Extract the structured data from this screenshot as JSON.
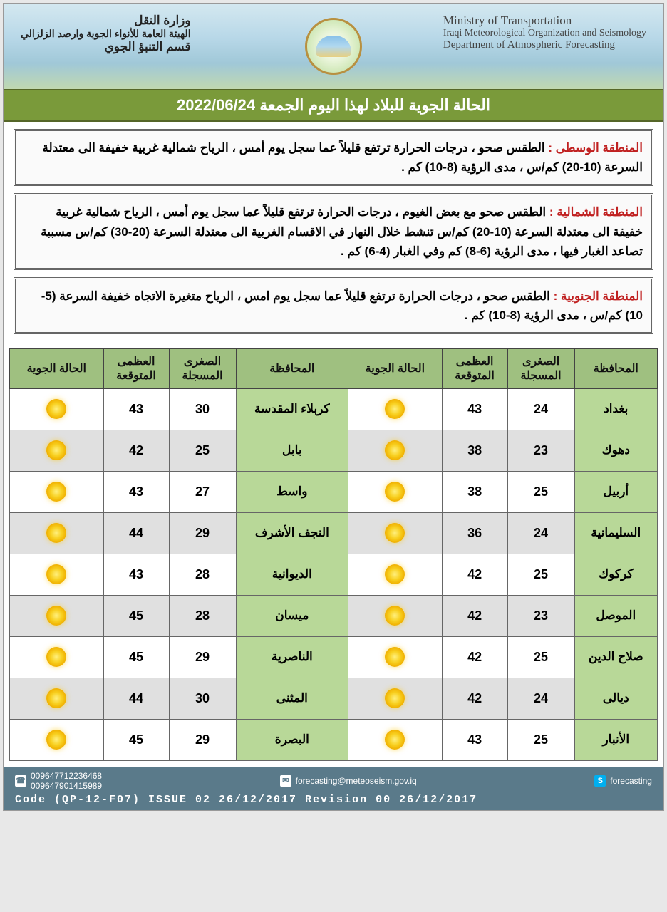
{
  "header": {
    "left_en": {
      "line1": "Ministry of Transportation",
      "line2": "Iraqi Meteorological Organization and Seismology",
      "line3": "Department of Atmospheric Forecasting"
    },
    "right_ar": {
      "line1": "وزارة النقل",
      "line2": "الهيئة العامة للأنواء الجوية وارصد الزلزالي",
      "line3": "قسم التنبؤ الجوي"
    }
  },
  "title": "الحالة الجوية للبلاد لهذا اليوم الجمعة  2022/06/24",
  "regions": [
    {
      "label": "المنطقة الوسطى :",
      "text": " الطقس صحو ، درجات الحرارة ترتفع قليلاً عما سجل يوم أمس ، الرياح شمالية غربية خفيفة الى معتدلة السرعة (10-20) كم/س ، مدى الرؤية (8-10) كم ."
    },
    {
      "label": "المنطقة الشمالية :",
      "text": " الطقس صحو مع بعض الغيوم ، درجات الحرارة ترتفع قليلاً عما سجل يوم أمس ، الرياح شمالية غربية خفيفة الى معتدلة السرعة (10-20) كم/س تنشط خلال النهار في الاقسام الغربية الى معتدلة السرعة (20-30) كم/س مسببة تصاعد الغبار فيها ، مدى الرؤية (6-8) كم وفي الغبار (4-6) كم ."
    },
    {
      "label": "المنطقة الجنوبية :",
      "text": " الطقس صحو ، درجات الحرارة ترتفع قليلاً عما سجل يوم امس ، الرياح متغيرة الاتجاه خفيفة السرعة (5-10) كم/س ، مدى الرؤية (8-10) كم ."
    }
  ],
  "table": {
    "headers": {
      "province": "المحافظة",
      "min": "الصغرى\nالمسجلة",
      "max": "العظمى\nالمتوقعة",
      "weather": "الحالة الجوية"
    },
    "colors": {
      "header_bg": "#9fc080",
      "province_bg": "#b8d898",
      "row_odd": "#ffffff",
      "row_even": "#e0e0e0",
      "border": "#444444"
    },
    "rows": [
      {
        "prov_r": "بغداد",
        "min_r": "24",
        "max_r": "43",
        "prov_l": "كربلاء المقدسة",
        "min_l": "30",
        "max_l": "43"
      },
      {
        "prov_r": "دهوك",
        "min_r": "23",
        "max_r": "38",
        "prov_l": "بابل",
        "min_l": "25",
        "max_l": "42"
      },
      {
        "prov_r": "أربيل",
        "min_r": "25",
        "max_r": "38",
        "prov_l": "واسط",
        "min_l": "27",
        "max_l": "43"
      },
      {
        "prov_r": "السليمانية",
        "min_r": "24",
        "max_r": "36",
        "prov_l": "النجف الأشرف",
        "min_l": "29",
        "max_l": "44"
      },
      {
        "prov_r": "كركوك",
        "min_r": "25",
        "max_r": "42",
        "prov_l": "الديوانية",
        "min_l": "28",
        "max_l": "43"
      },
      {
        "prov_r": "الموصل",
        "min_r": "23",
        "max_r": "42",
        "prov_l": "ميسان",
        "min_l": "28",
        "max_l": "45"
      },
      {
        "prov_r": "صلاح الدين",
        "min_r": "25",
        "max_r": "42",
        "prov_l": "الناصرية",
        "min_l": "29",
        "max_l": "45"
      },
      {
        "prov_r": "ديالى",
        "min_r": "24",
        "max_r": "42",
        "prov_l": "المثنى",
        "min_l": "30",
        "max_l": "44"
      },
      {
        "prov_r": "الأنبار",
        "min_r": "25",
        "max_r": "43",
        "prov_l": "البصرة",
        "min_l": "29",
        "max_l": "45"
      }
    ]
  },
  "footer": {
    "phone1": "009647712236468",
    "phone2": "009647901415989",
    "email": "forecasting@meteoseism.gov.iq",
    "skype": "forecasting",
    "code": "Code (QP-12-F07) ISSUE 02 26/12/2017 Revision 00 26/12/2017"
  }
}
